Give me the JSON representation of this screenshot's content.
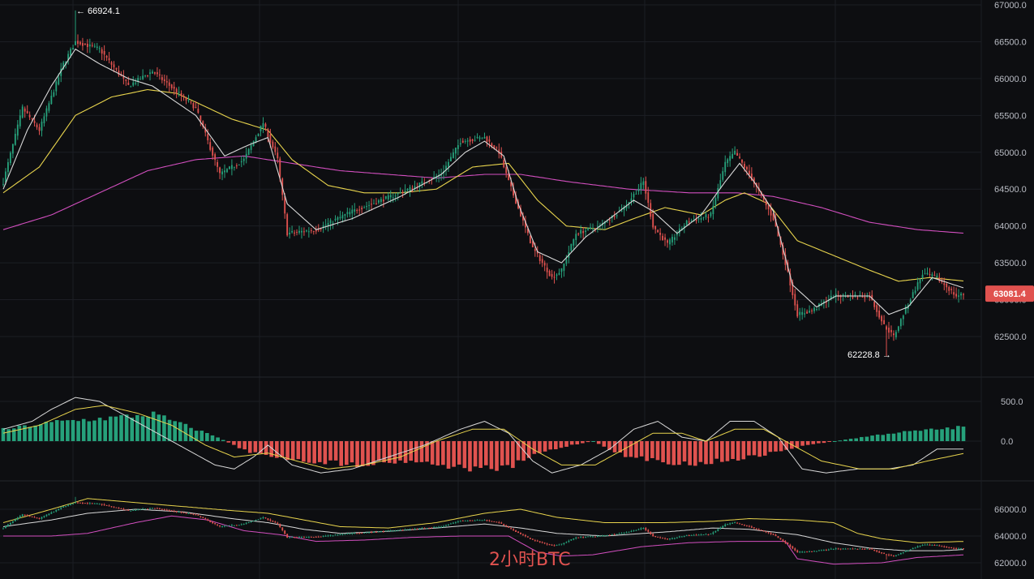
{
  "watermark": "2小时BTC",
  "colors": {
    "background": "#0d0e11",
    "grid": "#1c1e24",
    "separator": "#23252c",
    "up": "#26a17b",
    "down": "#e0524f",
    "ma_fast": "#d9d9d9",
    "ma_mid": "#e8d44d",
    "ma_slow": "#d24fbf",
    "price_tag": "#e0524f"
  },
  "price_panel": {
    "y_ticks": [
      "67000.0",
      "66500.0",
      "66000.0",
      "65500.0",
      "65000.0",
      "64500.0",
      "64000.0",
      "63500.0",
      "63000.0",
      "62500.0"
    ],
    "high_marker": "← 66924.1",
    "low_marker": "62228.8 →",
    "current_price": "63081.4"
  },
  "macd_panel": {
    "y_ticks": [
      "500.0",
      "0.0"
    ]
  },
  "boll_panel": {
    "y_ticks": [
      "66000.0",
      "64000.0",
      "62000.0"
    ]
  },
  "chart_data": [
    {
      "type": "candlestick",
      "ylim": [
        62000,
        67100
      ],
      "high": 66924.1,
      "low": 62228.8,
      "last": 63081.4,
      "close_anchors": [
        [
          0,
          64600
        ],
        [
          8,
          65600
        ],
        [
          15,
          65300
        ],
        [
          25,
          66200
        ],
        [
          30,
          66500
        ],
        [
          40,
          66400
        ],
        [
          52,
          65900
        ],
        [
          62,
          66100
        ],
        [
          80,
          65600
        ],
        [
          90,
          64700
        ],
        [
          100,
          64900
        ],
        [
          108,
          65400
        ],
        [
          114,
          64900
        ],
        [
          118,
          63900
        ],
        [
          130,
          63950
        ],
        [
          145,
          64200
        ],
        [
          165,
          64450
        ],
        [
          182,
          64700
        ],
        [
          190,
          65150
        ],
        [
          200,
          65200
        ],
        [
          206,
          65000
        ],
        [
          210,
          64600
        ],
        [
          220,
          63700
        ],
        [
          228,
          63300
        ],
        [
          232,
          63400
        ],
        [
          238,
          63900
        ],
        [
          248,
          64000
        ],
        [
          258,
          64250
        ],
        [
          266,
          64600
        ],
        [
          270,
          64000
        ],
        [
          276,
          63750
        ],
        [
          284,
          64050
        ],
        [
          294,
          64150
        ],
        [
          300,
          64850
        ],
        [
          304,
          65000
        ],
        [
          310,
          64700
        ],
        [
          320,
          64100
        ],
        [
          325,
          63500
        ],
        [
          330,
          62800
        ],
        [
          336,
          62850
        ],
        [
          345,
          63050
        ],
        [
          360,
          63050
        ],
        [
          366,
          62650
        ],
        [
          370,
          62500
        ],
        [
          376,
          62950
        ],
        [
          382,
          63350
        ],
        [
          388,
          63300
        ],
        [
          396,
          63050
        ],
        [
          400,
          63080
        ]
      ],
      "ma_fast_anchors": [
        [
          0,
          64500
        ],
        [
          10,
          65300
        ],
        [
          20,
          65900
        ],
        [
          30,
          66400
        ],
        [
          40,
          66200
        ],
        [
          52,
          66000
        ],
        [
          62,
          65900
        ],
        [
          80,
          65500
        ],
        [
          92,
          64950
        ],
        [
          102,
          65100
        ],
        [
          110,
          65200
        ],
        [
          118,
          64300
        ],
        [
          130,
          63950
        ],
        [
          145,
          64100
        ],
        [
          165,
          64400
        ],
        [
          182,
          64700
        ],
        [
          192,
          65000
        ],
        [
          200,
          65150
        ],
        [
          208,
          64950
        ],
        [
          214,
          64300
        ],
        [
          222,
          63650
        ],
        [
          232,
          63500
        ],
        [
          242,
          63850
        ],
        [
          252,
          64100
        ],
        [
          262,
          64350
        ],
        [
          270,
          64200
        ],
        [
          280,
          63900
        ],
        [
          290,
          64150
        ],
        [
          300,
          64600
        ],
        [
          306,
          64850
        ],
        [
          312,
          64600
        ],
        [
          320,
          64200
        ],
        [
          328,
          63200
        ],
        [
          338,
          62900
        ],
        [
          346,
          63050
        ],
        [
          360,
          63050
        ],
        [
          368,
          62800
        ],
        [
          376,
          62900
        ],
        [
          386,
          63300
        ],
        [
          400,
          63150
        ]
      ],
      "ma_mid_anchors": [
        [
          0,
          64450
        ],
        [
          15,
          64800
        ],
        [
          30,
          65500
        ],
        [
          45,
          65750
        ],
        [
          60,
          65850
        ],
        [
          72,
          65800
        ],
        [
          82,
          65650
        ],
        [
          95,
          65450
        ],
        [
          110,
          65300
        ],
        [
          120,
          64900
        ],
        [
          135,
          64550
        ],
        [
          150,
          64450
        ],
        [
          165,
          64450
        ],
        [
          180,
          64500
        ],
        [
          195,
          64800
        ],
        [
          210,
          64850
        ],
        [
          222,
          64350
        ],
        [
          234,
          64000
        ],
        [
          250,
          63950
        ],
        [
          262,
          64100
        ],
        [
          275,
          64250
        ],
        [
          290,
          64150
        ],
        [
          300,
          64350
        ],
        [
          308,
          64450
        ],
        [
          318,
          64300
        ],
        [
          330,
          63800
        ],
        [
          345,
          63600
        ],
        [
          360,
          63400
        ],
        [
          372,
          63250
        ],
        [
          385,
          63300
        ],
        [
          400,
          63250
        ]
      ],
      "ma_slow_anchors": [
        [
          0,
          63950
        ],
        [
          20,
          64150
        ],
        [
          40,
          64450
        ],
        [
          60,
          64750
        ],
        [
          80,
          64900
        ],
        [
          100,
          64950
        ],
        [
          120,
          64850
        ],
        [
          140,
          64750
        ],
        [
          160,
          64700
        ],
        [
          180,
          64650
        ],
        [
          200,
          64700
        ],
        [
          215,
          64700
        ],
        [
          235,
          64600
        ],
        [
          260,
          64500
        ],
        [
          285,
          64450
        ],
        [
          305,
          64450
        ],
        [
          320,
          64400
        ],
        [
          340,
          64250
        ],
        [
          360,
          64050
        ],
        [
          380,
          63950
        ],
        [
          400,
          63900
        ]
      ]
    },
    {
      "type": "macd",
      "ylim": [
        -650,
        800
      ],
      "hist_anchors": [
        [
          0,
          150
        ],
        [
          10,
          250
        ],
        [
          20,
          300
        ],
        [
          28,
          350
        ],
        [
          34,
          200
        ],
        [
          40,
          50
        ],
        [
          46,
          -150
        ],
        [
          56,
          -250
        ],
        [
          66,
          -300
        ],
        [
          76,
          -250
        ],
        [
          86,
          -350
        ],
        [
          94,
          -350
        ],
        [
          100,
          -150
        ],
        [
          106,
          -50
        ],
        [
          110,
          0
        ],
        [
          116,
          -200
        ],
        [
          128,
          -300
        ],
        [
          140,
          -200
        ],
        [
          150,
          -50
        ],
        [
          165,
          100
        ],
        [
          182,
          200
        ],
        [
          195,
          250
        ],
        [
          204,
          200
        ],
        [
          212,
          0
        ],
        [
          220,
          -300
        ],
        [
          226,
          -400
        ],
        [
          238,
          -250
        ],
        [
          248,
          -50
        ],
        [
          256,
          100
        ],
        [
          262,
          250
        ],
        [
          270,
          250
        ],
        [
          276,
          50
        ],
        [
          286,
          -50
        ],
        [
          296,
          150
        ],
        [
          304,
          250
        ],
        [
          312,
          200
        ],
        [
          320,
          50
        ],
        [
          328,
          -200
        ],
        [
          334,
          -400
        ],
        [
          346,
          -250
        ],
        [
          358,
          -50
        ],
        [
          368,
          0
        ],
        [
          376,
          -30
        ],
        [
          382,
          150
        ],
        [
          390,
          250
        ],
        [
          400,
          150
        ]
      ],
      "dif_anchors": [
        [
          0,
          150
        ],
        [
          12,
          250
        ],
        [
          20,
          400
        ],
        [
          30,
          550
        ],
        [
          40,
          500
        ],
        [
          52,
          300
        ],
        [
          64,
          100
        ],
        [
          76,
          -100
        ],
        [
          88,
          -300
        ],
        [
          96,
          -350
        ],
        [
          104,
          -200
        ],
        [
          110,
          -50
        ],
        [
          120,
          -300
        ],
        [
          132,
          -400
        ],
        [
          145,
          -350
        ],
        [
          160,
          -200
        ],
        [
          175,
          -50
        ],
        [
          190,
          150
        ],
        [
          200,
          250
        ],
        [
          210,
          100
        ],
        [
          220,
          -250
        ],
        [
          228,
          -400
        ],
        [
          240,
          -300
        ],
        [
          252,
          -100
        ],
        [
          262,
          150
        ],
        [
          272,
          250
        ],
        [
          282,
          50
        ],
        [
          292,
          0
        ],
        [
          302,
          250
        ],
        [
          312,
          250
        ],
        [
          322,
          50
        ],
        [
          332,
          -350
        ],
        [
          342,
          -400
        ],
        [
          355,
          -350
        ],
        [
          368,
          -350
        ],
        [
          378,
          -300
        ],
        [
          388,
          -100
        ],
        [
          400,
          -100
        ]
      ],
      "dea_anchors": [
        [
          0,
          100
        ],
        [
          15,
          200
        ],
        [
          30,
          400
        ],
        [
          42,
          450
        ],
        [
          56,
          350
        ],
        [
          70,
          200
        ],
        [
          84,
          -50
        ],
        [
          96,
          -200
        ],
        [
          110,
          -150
        ],
        [
          122,
          -250
        ],
        [
          135,
          -350
        ],
        [
          150,
          -300
        ],
        [
          165,
          -200
        ],
        [
          180,
          0
        ],
        [
          195,
          150
        ],
        [
          208,
          150
        ],
        [
          220,
          -100
        ],
        [
          232,
          -300
        ],
        [
          246,
          -300
        ],
        [
          258,
          -100
        ],
        [
          270,
          100
        ],
        [
          282,
          100
        ],
        [
          292,
          0
        ],
        [
          304,
          150
        ],
        [
          316,
          150
        ],
        [
          328,
          -50
        ],
        [
          340,
          -250
        ],
        [
          356,
          -350
        ],
        [
          370,
          -350
        ],
        [
          384,
          -250
        ],
        [
          400,
          -150
        ]
      ]
    },
    {
      "type": "bollinger",
      "ylim": [
        61800,
        67000
      ],
      "upper_anchors": [
        [
          0,
          65000
        ],
        [
          20,
          66000
        ],
        [
          35,
          66800
        ],
        [
          55,
          66500
        ],
        [
          75,
          66200
        ],
        [
          95,
          65900
        ],
        [
          110,
          65700
        ],
        [
          125,
          65200
        ],
        [
          140,
          64700
        ],
        [
          160,
          64600
        ],
        [
          180,
          65000
        ],
        [
          200,
          65700
        ],
        [
          215,
          66000
        ],
        [
          230,
          65400
        ],
        [
          250,
          65000
        ],
        [
          275,
          65000
        ],
        [
          295,
          65100
        ],
        [
          310,
          65300
        ],
        [
          330,
          65200
        ],
        [
          345,
          65000
        ],
        [
          355,
          64200
        ],
        [
          365,
          63800
        ],
        [
          380,
          63500
        ],
        [
          400,
          63600
        ]
      ],
      "middle_anchors": [
        [
          0,
          64700
        ],
        [
          20,
          65200
        ],
        [
          35,
          65700
        ],
        [
          55,
          66000
        ],
        [
          75,
          65800
        ],
        [
          95,
          65300
        ],
        [
          110,
          65000
        ],
        [
          125,
          64500
        ],
        [
          140,
          64200
        ],
        [
          160,
          64350
        ],
        [
          180,
          64600
        ],
        [
          200,
          64900
        ],
        [
          215,
          64600
        ],
        [
          230,
          64200
        ],
        [
          250,
          64000
        ],
        [
          275,
          64300
        ],
        [
          295,
          64600
        ],
        [
          310,
          64500
        ],
        [
          330,
          64100
        ],
        [
          345,
          63500
        ],
        [
          360,
          63100
        ],
        [
          375,
          62900
        ],
        [
          390,
          62900
        ],
        [
          400,
          63000
        ]
      ],
      "lower_anchors": [
        [
          0,
          64000
        ],
        [
          20,
          64000
        ],
        [
          35,
          64200
        ],
        [
          55,
          65000
        ],
        [
          70,
          65500
        ],
        [
          85,
          65200
        ],
        [
          100,
          64400
        ],
        [
          115,
          64100
        ],
        [
          130,
          63600
        ],
        [
          150,
          63700
        ],
        [
          170,
          63900
        ],
        [
          190,
          64000
        ],
        [
          210,
          64000
        ],
        [
          222,
          62800
        ],
        [
          232,
          62500
        ],
        [
          245,
          62600
        ],
        [
          265,
          63200
        ],
        [
          285,
          63500
        ],
        [
          305,
          63600
        ],
        [
          325,
          63600
        ],
        [
          330,
          62300
        ],
        [
          345,
          61900
        ],
        [
          365,
          62000
        ],
        [
          380,
          62400
        ],
        [
          400,
          62600
        ]
      ]
    }
  ]
}
